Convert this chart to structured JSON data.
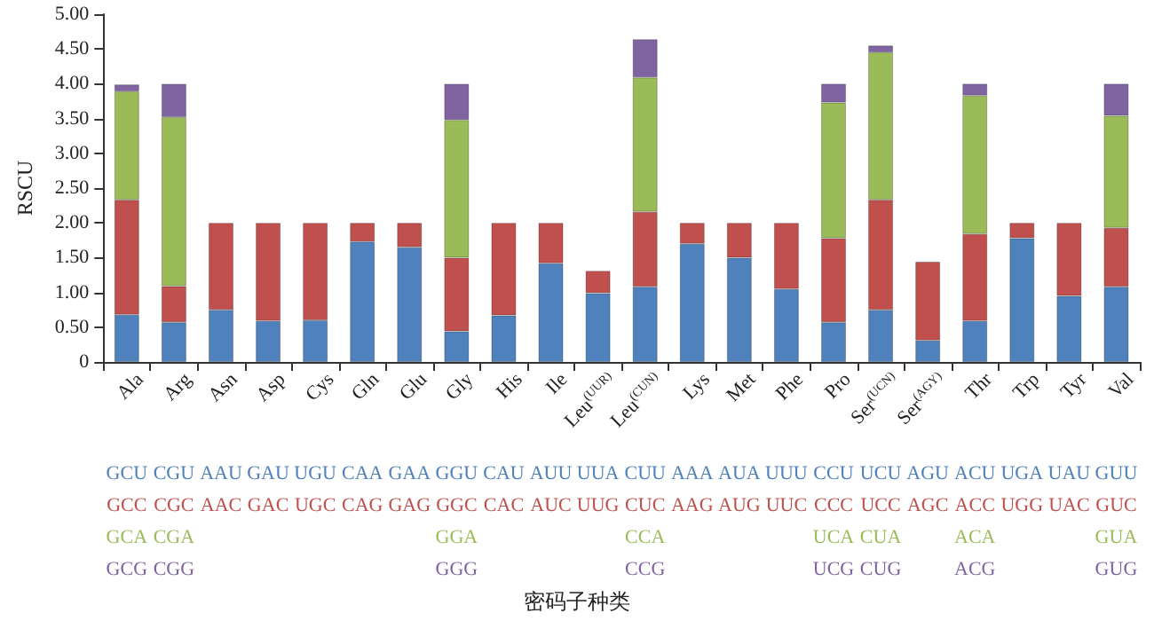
{
  "chart_data": {
    "type": "bar",
    "stacked": true,
    "ylabel": "RSCU",
    "categories": [
      "Ala",
      "Arg",
      "Asn",
      "Asp",
      "Cys",
      "Gln",
      "Glu",
      "Gly",
      "His",
      "Ile",
      "Leu$^{(UUR)}$",
      "Leu$^{(CUN)}$",
      "Lys",
      "Met",
      "Phe",
      "Pro",
      "Ser$^{(UCN)}$",
      "Ser$^{(AGY)}$",
      "Thr",
      "Trp",
      "Tyr",
      "Val"
    ],
    "series": [
      {
        "color": "#4f81bd",
        "values": [
          0.68,
          0.57,
          0.75,
          0.59,
          0.6,
          1.73,
          1.65,
          0.44,
          0.67,
          1.42,
          0.99,
          1.08,
          1.7,
          1.5,
          1.05,
          0.57,
          0.75,
          0.31,
          0.59,
          1.78,
          0.95,
          1.08
        ]
      },
      {
        "color": "#c0504d",
        "values": [
          1.65,
          0.52,
          1.25,
          1.41,
          1.4,
          0.27,
          0.35,
          1.06,
          1.33,
          0.58,
          0.32,
          1.08,
          0.3,
          0.5,
          0.95,
          1.21,
          1.58,
          1.13,
          1.25,
          0.22,
          1.05,
          0.85
        ]
      },
      {
        "color": "#9bbb59",
        "values": [
          1.56,
          2.43,
          null,
          null,
          null,
          null,
          null,
          1.98,
          null,
          null,
          null,
          1.93,
          null,
          null,
          null,
          1.95,
          2.12,
          null,
          1.99,
          null,
          null,
          1.61
        ]
      },
      {
        "color": "#8064a2",
        "values": [
          0.1,
          0.48,
          null,
          null,
          null,
          null,
          null,
          0.52,
          null,
          null,
          null,
          0.55,
          null,
          null,
          null,
          0.27,
          0.1,
          null,
          0.17,
          null,
          null,
          0.46
        ]
      }
    ],
    "ylim": [
      0,
      5
    ],
    "yticks": [
      0,
      {
        "value": 0.5,
        "label": "0.50"
      },
      {
        "value": 1,
        "label": "1.00"
      },
      {
        "value": 1.5,
        "label": "1.50"
      },
      {
        "value": 2,
        "label": "2.00"
      },
      {
        "value": 2.5,
        "label": "2.50"
      },
      {
        "value": 3,
        "label": "3.00"
      },
      {
        "value": 3.5,
        "label": "3.50"
      },
      {
        "value": 4,
        "label": "4.00"
      },
      {
        "value": 4.5,
        "label": "4.50"
      },
      {
        "value": 5,
        "label": "5.00"
      }
    ],
    "grid": false,
    "annotations": [
      "GCU CGU AAU GAU UGU CAA GAA GGU CAU AUU UUA CUU AAA AUA UUU CCU UCU AGU ACU UGA UAU GUU",
      "GCC CGC AAC GAC UGC CAG GAG GGC CAC AUC UUG CUC AAG AUG UUC CCC UCC AGC ACC UGG UAC GUC",
      "GCA CGA GGA CCA UCA CUA ACA GUA",
      "GCG CGG GGG CCG UCG CUG ACG GUG",
      "密码子种类"
    ]
  }
}
